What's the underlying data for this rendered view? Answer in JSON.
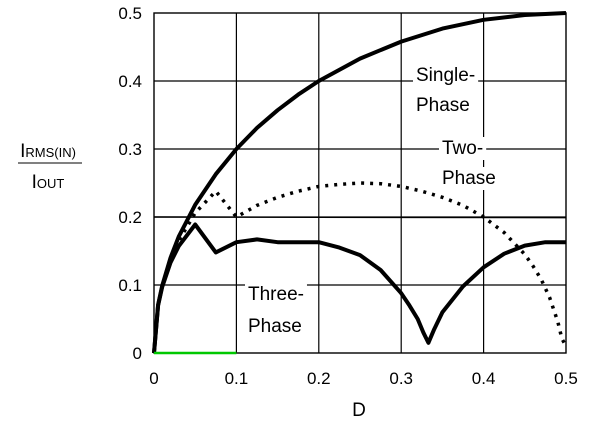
{
  "chart_data": {
    "type": "line",
    "title": "",
    "xlabel": "D",
    "ylabel_numerator": {
      "main": "I",
      "sub": "RMS(IN)"
    },
    "ylabel_denominator": {
      "main": "I",
      "sub": "OUT"
    },
    "xlim": [
      0,
      0.5
    ],
    "ylim": [
      0,
      0.5
    ],
    "xticks": [
      "0",
      "0.1",
      "0.2",
      "0.3",
      "0.4",
      "0.5"
    ],
    "yticks": [
      "0",
      "0.1",
      "0.2",
      "0.3",
      "0.4",
      "0.5"
    ],
    "grid": true,
    "series": [
      {
        "name": "Single-Phase",
        "label_lines": [
          "Single-",
          "Phase"
        ],
        "style": "solid",
        "color": "#000000",
        "x": [
          0,
          0.005,
          0.01,
          0.02,
          0.03,
          0.05,
          0.075,
          0.1,
          0.125,
          0.15,
          0.175,
          0.2,
          0.25,
          0.3,
          0.35,
          0.4,
          0.45,
          0.5
        ],
        "y": [
          0,
          0.071,
          0.099,
          0.14,
          0.171,
          0.218,
          0.263,
          0.3,
          0.331,
          0.357,
          0.38,
          0.4,
          0.433,
          0.458,
          0.477,
          0.49,
          0.497,
          0.5
        ]
      },
      {
        "name": "Two-Phase",
        "label_lines": [
          "Two-",
          "Phase"
        ],
        "style": "dotted",
        "color": "#000000",
        "x": [
          0,
          0.005,
          0.01,
          0.02,
          0.03,
          0.05,
          0.075,
          0.1,
          0.125,
          0.15,
          0.175,
          0.2,
          0.225,
          0.25,
          0.275,
          0.3,
          0.325,
          0.35,
          0.375,
          0.4,
          0.425,
          0.45,
          0.46,
          0.47,
          0.48,
          0.49,
          0.495,
          0.5
        ],
        "y": [
          0,
          0.07,
          0.098,
          0.137,
          0.165,
          0.206,
          0.238,
          0.2,
          0.217,
          0.229,
          0.238,
          0.245,
          0.248,
          0.25,
          0.249,
          0.245,
          0.238,
          0.229,
          0.217,
          0.2,
          0.177,
          0.145,
          0.128,
          0.108,
          0.082,
          0.046,
          0.021,
          0.01
        ]
      },
      {
        "name": "Three-Phase",
        "label_lines": [
          "Three-",
          "Phase"
        ],
        "style": "solid",
        "color": "#000000",
        "x": [
          0,
          0.005,
          0.01,
          0.02,
          0.03,
          0.05,
          0.075,
          0.1,
          0.125,
          0.15,
          0.167,
          0.2,
          0.225,
          0.25,
          0.275,
          0.3,
          0.31,
          0.32,
          0.327,
          0.333,
          0.34,
          0.35,
          0.375,
          0.4,
          0.425,
          0.45,
          0.475,
          0.5
        ],
        "y": [
          0,
          0.07,
          0.097,
          0.133,
          0.157,
          0.189,
          0.148,
          0.163,
          0.167,
          0.163,
          0.163,
          0.163,
          0.155,
          0.144,
          0.122,
          0.088,
          0.07,
          0.05,
          0.03,
          0.015,
          0.035,
          0.06,
          0.098,
          0.126,
          0.146,
          0.158,
          0.163,
          0.163
        ]
      },
      {
        "name": "",
        "style": "solid",
        "color": "#00c800",
        "x": [
          0,
          0.1
        ],
        "y": [
          0,
          0
        ]
      }
    ],
    "reference_line": {
      "x": [
        0,
        0.5
      ],
      "y": [
        0.2,
        0.199
      ]
    }
  }
}
